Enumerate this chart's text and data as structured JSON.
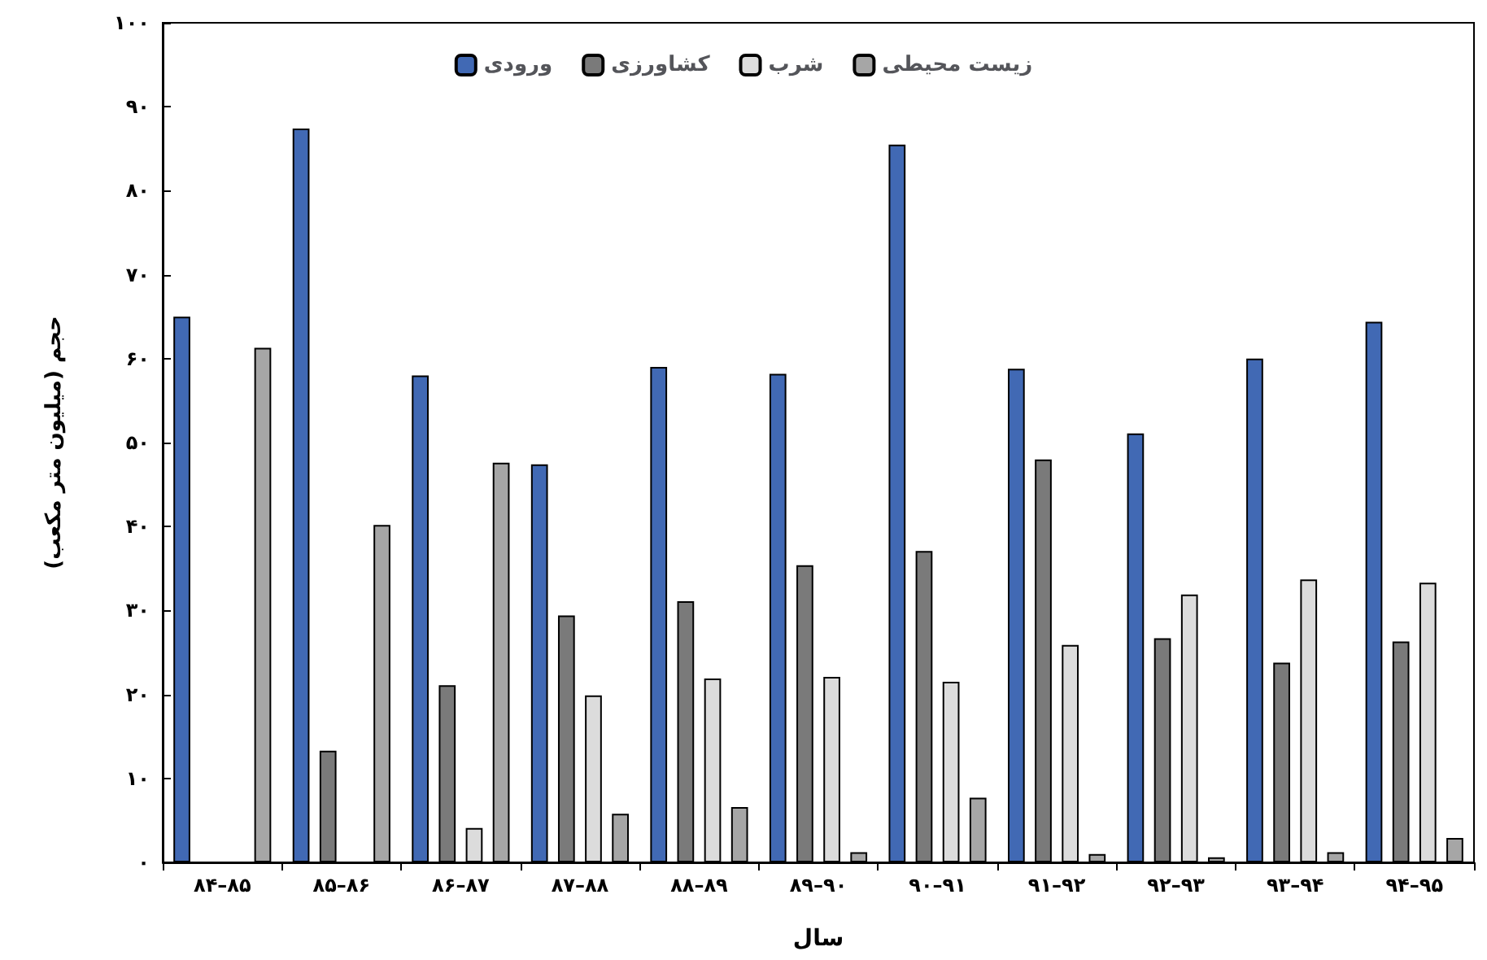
{
  "chart_data": {
    "type": "bar",
    "xlabel": "سال",
    "ylabel": "حجم (میلیون متر مکعب)",
    "categories": [
      "۸۴–۸۵",
      "۸۵–۸۶",
      "۸۶–۸۷",
      "۸۷–۸۸",
      "۸۸–۸۹",
      "۸۹–۹۰",
      "۹۰–۹۱",
      "۹۱–۹۲",
      "۹۲–۹۳",
      "۹۳–۹۴",
      "۹۴–۹۵"
    ],
    "series": [
      {
        "name": "ورودی",
        "color": "#4169b4",
        "values": [
          65,
          87.4,
          58,
          47.4,
          59,
          58.2,
          85.5,
          58.8,
          51.1,
          60,
          64.4
        ]
      },
      {
        "name": "کشاورزی",
        "color": "#7a7a7a",
        "values": [
          null,
          13.3,
          21.1,
          29.4,
          31.1,
          35.4,
          37.1,
          48,
          26.7,
          23.8,
          26.3
        ]
      },
      {
        "name": "شرب",
        "color": "#dcdcdc",
        "values": [
          null,
          null,
          4.1,
          19.9,
          21.9,
          22.1,
          21.5,
          25.9,
          31.9,
          33.7,
          33.3
        ]
      },
      {
        "name": "زیست محیطی",
        "color": "#a6a6a6",
        "values": [
          61.3,
          40.2,
          47.6,
          5.8,
          6.6,
          1.2,
          7.7,
          1,
          0.6,
          1.2,
          2.9
        ]
      }
    ],
    "ylim": [
      0,
      100
    ],
    "yticks": [
      {
        "value": 0,
        "label": "۰"
      },
      {
        "value": 10,
        "label": "۱۰"
      },
      {
        "value": 20,
        "label": "۲۰"
      },
      {
        "value": 30,
        "label": "۳۰"
      },
      {
        "value": 40,
        "label": "۴۰"
      },
      {
        "value": 50,
        "label": "۵۰"
      },
      {
        "value": 60,
        "label": "۶۰"
      },
      {
        "value": 70,
        "label": "۷۰"
      },
      {
        "value": 80,
        "label": "۸۰"
      },
      {
        "value": 90,
        "label": "۹۰"
      },
      {
        "value": 100,
        "label": "۱۰۰"
      }
    ],
    "grid": false,
    "legend": "top"
  }
}
